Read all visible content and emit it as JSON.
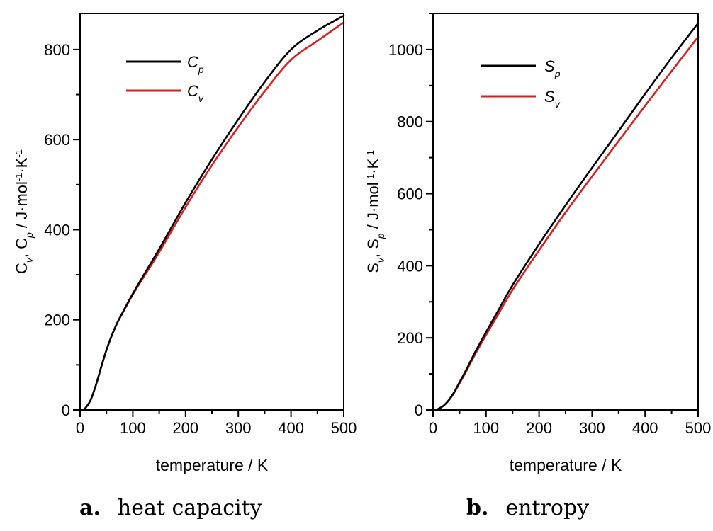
{
  "chart_data": [
    {
      "type": "line",
      "panel": "a",
      "caption_tag": "a.",
      "caption_text": "heat capacity",
      "xlabel": "temperature / K",
      "ylabel": {
        "prefix": "C",
        "prefix_sub": "v",
        "mid": ", C",
        "mid_sub": "p",
        "unit": " / J·mol",
        "exp1": "-1",
        "unit2": "·K",
        "exp2": "-1"
      },
      "xlim": [
        0,
        500
      ],
      "ylim": [
        0,
        880
      ],
      "xticks": [
        0,
        100,
        200,
        300,
        400,
        500
      ],
      "yticks": [
        0,
        200,
        400,
        600,
        800
      ],
      "xticklabels": [
        "0",
        "100",
        "200",
        "300",
        "400",
        "500"
      ],
      "yticklabels": [
        "0",
        "200",
        "400",
        "600",
        "800"
      ],
      "legend_position": "top-left",
      "x": [
        5,
        10,
        20,
        30,
        40,
        50,
        60,
        70,
        80,
        100,
        120,
        150,
        200,
        250,
        300,
        350,
        400,
        450,
        500
      ],
      "series": [
        {
          "name": "C",
          "sub": "p",
          "color": "#000000",
          "values": [
            0,
            4,
            22,
            55,
            95,
            133,
            165,
            192,
            215,
            258,
            298,
            357,
            460,
            556,
            645,
            728,
            800,
            842,
            875
          ]
        },
        {
          "name": "C",
          "sub": "v",
          "color": "#d42020",
          "values": [
            0,
            4,
            22,
            55,
            95,
            133,
            165,
            192,
            214,
            256,
            294,
            350,
            450,
            543,
            628,
            707,
            777,
            819,
            860
          ]
        }
      ]
    },
    {
      "type": "line",
      "panel": "b",
      "caption_tag": "b.",
      "caption_text": "entropy",
      "xlabel": "temperature / K",
      "ylabel": {
        "prefix": "S",
        "prefix_sub": "v",
        "mid": ", S",
        "mid_sub": "p",
        "unit": " / J·mol",
        "exp1": "-1",
        "unit2": "·K",
        "exp2": "-1"
      },
      "xlim": [
        0,
        500
      ],
      "ylim": [
        0,
        1100
      ],
      "xticks": [
        0,
        100,
        200,
        300,
        400,
        500
      ],
      "yticks": [
        0,
        200,
        400,
        600,
        800,
        1000
      ],
      "xticklabels": [
        "0",
        "100",
        "200",
        "300",
        "400",
        "500"
      ],
      "yticklabels": [
        "0",
        "200",
        "400",
        "600",
        "800",
        "1000"
      ],
      "legend_position": "top-left",
      "x": [
        5,
        10,
        20,
        30,
        40,
        50,
        60,
        70,
        80,
        100,
        120,
        150,
        200,
        250,
        300,
        350,
        400,
        450,
        500
      ],
      "series": [
        {
          "name": "S",
          "sub": "p",
          "color": "#000000",
          "values": [
            0,
            3,
            12,
            28,
            50,
            77,
            104,
            133,
            162,
            216,
            268,
            346,
            460,
            568,
            672,
            774,
            877,
            977,
            1073
          ]
        },
        {
          "name": "S",
          "sub": "v",
          "color": "#d42020",
          "values": [
            0,
            3,
            12,
            27,
            48,
            74,
            100,
            128,
            156,
            208,
            258,
            333,
            443,
            548,
            648,
            746,
            844,
            940,
            1035
          ]
        }
      ]
    }
  ]
}
